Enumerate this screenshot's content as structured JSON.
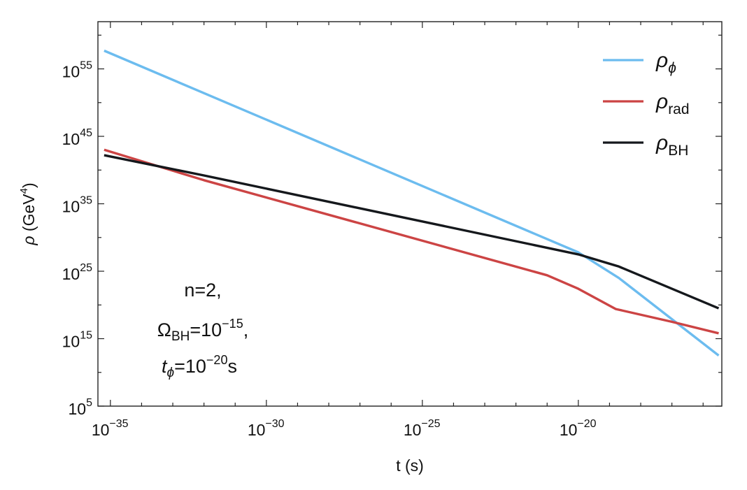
{
  "chart_data": {
    "type": "line",
    "xlabel": "t (s)",
    "ylabel": {
      "symbol": "ρ",
      "unit": "(GeV",
      "sup": "4",
      "close": ")"
    },
    "x_log_range": [
      -35.4,
      -15.4
    ],
    "y_log_range": [
      5,
      62
    ],
    "x_ticks": [
      {
        "exp": -35,
        "base": "10",
        "sup": "−35"
      },
      {
        "exp": -30,
        "base": "10",
        "sup": "−30"
      },
      {
        "exp": -25,
        "base": "10",
        "sup": "−25"
      },
      {
        "exp": -20,
        "base": "10",
        "sup": "−20"
      }
    ],
    "y_ticks": [
      {
        "exp": 5,
        "base": "10",
        "sup": "5"
      },
      {
        "exp": 15,
        "base": "10",
        "sup": "15"
      },
      {
        "exp": 25,
        "base": "10",
        "sup": "25"
      },
      {
        "exp": 35,
        "base": "10",
        "sup": "35"
      },
      {
        "exp": 45,
        "base": "10",
        "sup": "45"
      },
      {
        "exp": 55,
        "base": "10",
        "sup": "55"
      }
    ],
    "series": [
      {
        "key": "phi",
        "sym": "ρ",
        "sub": "ϕ",
        "color": "#6cbcef",
        "log_points": [
          [
            -35.2,
            57.7
          ],
          [
            -20.0,
            27.8
          ],
          [
            -18.7,
            24.0
          ],
          [
            -15.5,
            12.5
          ]
        ]
      },
      {
        "key": "rad",
        "sym": "ρ",
        "sub": "rad",
        "color": "#cc4444",
        "log_points": [
          [
            -35.2,
            43.0
          ],
          [
            -32.0,
            38.5
          ],
          [
            -21.0,
            24.4
          ],
          [
            -20.0,
            22.4
          ],
          [
            -18.8,
            19.4
          ],
          [
            -17.0,
            17.5
          ],
          [
            -15.5,
            15.8
          ]
        ]
      },
      {
        "key": "bh",
        "sym": "ρ",
        "sub": "BH",
        "color": "#15181c",
        "log_points": [
          [
            -35.2,
            42.2
          ],
          [
            -32.0,
            39.2
          ],
          [
            -20.0,
            27.5
          ],
          [
            -18.7,
            25.7
          ],
          [
            -15.5,
            19.5
          ]
        ]
      }
    ],
    "legend_position": "top-right",
    "annotation": {
      "line1": "n=2,",
      "omega_sym": "Ω",
      "omega_sub": "BH",
      "omega_eq": "=10",
      "omega_sup": "−15",
      "omega_end": ",",
      "t_sym": "t",
      "t_sub": "ϕ",
      "t_eq": "=10",
      "t_sup": "−20",
      "t_end": "s"
    }
  }
}
